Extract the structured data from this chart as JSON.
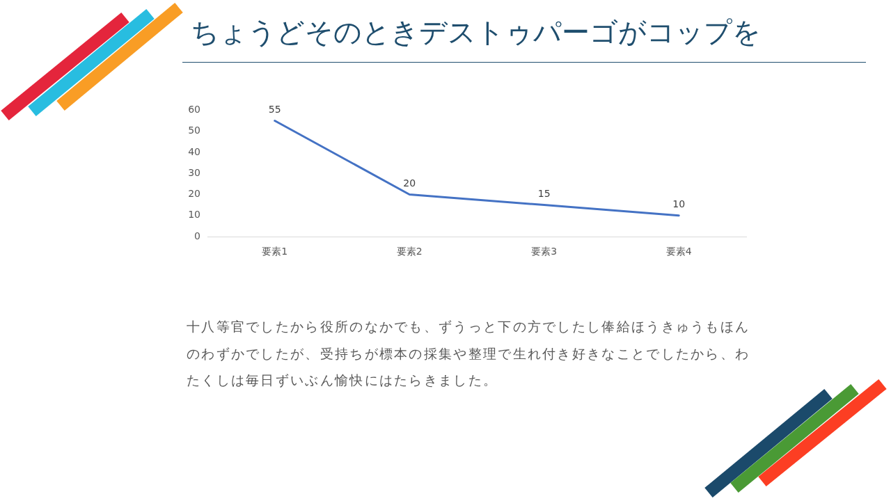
{
  "chart_data": {
    "type": "line",
    "title": "ちょうどそのときデストゥパーゴがコップを",
    "categories": [
      "要素1",
      "要素2",
      "要素3",
      "要素4"
    ],
    "values": [
      55,
      20,
      15,
      10
    ],
    "color": "#4472c4",
    "ylim": [
      0,
      60
    ],
    "yticks": [
      0,
      10,
      20,
      30,
      40,
      50,
      60
    ],
    "grid": false,
    "legend": false,
    "marker": "none",
    "line_style": "solid",
    "data_labels": true,
    "annotations": [
      "十八等官でしたから役所のなかでも、ずうっと下の方でしたし俸給ほうきゅうもほんのわずかでしたが、受持ちが標本の採集や整理で生れ付き好きなことでしたから、わたくしは毎日ずいぶん愉快にはたらきました。"
    ]
  }
}
